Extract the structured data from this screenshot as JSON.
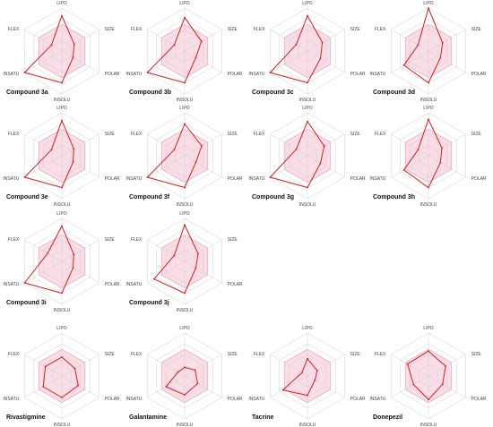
{
  "figure": {
    "axes": [
      "LIPO",
      "SIZE",
      "POLAR",
      "INSOLU",
      "INSATU",
      "FLEX"
    ],
    "colors": {
      "zone_fill": "#f7c6d6",
      "zone_stroke": "#e89ab5",
      "grid": "#d0d0d0",
      "trace": "#d42020",
      "text": "#444444"
    }
  },
  "chart_data": [
    {
      "type": "radar",
      "title": "Compound 3a",
      "axes": [
        "LIPO",
        "SIZE",
        "POLAR",
        "INSOLU",
        "INSATU",
        "FLEX"
      ],
      "values": [
        0.82,
        0.33,
        0.3,
        0.74,
        1.0,
        0.28
      ],
      "rmax": 1.0,
      "optimal_zone": 0.62
    },
    {
      "type": "radar",
      "title": "Compound 3b",
      "axes": [
        "LIPO",
        "SIZE",
        "POLAR",
        "INSOLU",
        "INSATU",
        "FLEX"
      ],
      "values": [
        0.78,
        0.45,
        0.3,
        0.74,
        1.0,
        0.28
      ],
      "rmax": 1.0,
      "optimal_zone": 0.62
    },
    {
      "type": "radar",
      "title": "Compound 3c",
      "axes": [
        "LIPO",
        "SIZE",
        "POLAR",
        "INSOLU",
        "INSATU",
        "FLEX"
      ],
      "values": [
        0.82,
        0.4,
        0.35,
        0.74,
        1.0,
        0.3
      ],
      "rmax": 1.0,
      "optimal_zone": 0.62
    },
    {
      "type": "radar",
      "title": "Compound 3d",
      "axes": [
        "LIPO",
        "SIZE",
        "POLAR",
        "INSOLU",
        "INSATU",
        "FLEX"
      ],
      "values": [
        1.0,
        0.38,
        0.32,
        0.74,
        0.66,
        0.28
      ],
      "rmax": 1.0,
      "optimal_zone": 0.62
    },
    {
      "type": "radar",
      "title": "Compound 3e",
      "axes": [
        "LIPO",
        "SIZE",
        "POLAR",
        "INSOLU",
        "INSATU",
        "FLEX"
      ],
      "values": [
        0.82,
        0.32,
        0.3,
        0.74,
        1.0,
        0.28
      ],
      "rmax": 1.0,
      "optimal_zone": 0.62
    },
    {
      "type": "radar",
      "title": "Compound 3f",
      "axes": [
        "LIPO",
        "SIZE",
        "POLAR",
        "INSOLU",
        "INSATU",
        "FLEX"
      ],
      "values": [
        0.74,
        0.46,
        0.3,
        0.74,
        1.0,
        0.28
      ],
      "rmax": 1.0,
      "optimal_zone": 0.62
    },
    {
      "type": "radar",
      "title": "Compound 3g",
      "axes": [
        "LIPO",
        "SIZE",
        "POLAR",
        "INSOLU",
        "INSATU",
        "FLEX"
      ],
      "values": [
        0.8,
        0.45,
        0.35,
        0.74,
        1.0,
        0.3
      ],
      "rmax": 1.0,
      "optimal_zone": 0.62
    },
    {
      "type": "radar",
      "title": "Compound 3h",
      "axes": [
        "LIPO",
        "SIZE",
        "POLAR",
        "INSOLU",
        "INSATU",
        "FLEX"
      ],
      "values": [
        0.85,
        0.36,
        0.32,
        0.74,
        0.66,
        0.28
      ],
      "rmax": 1.0,
      "optimal_zone": 0.62
    },
    {
      "type": "radar",
      "title": "Compound 3i",
      "axes": [
        "LIPO",
        "SIZE",
        "POLAR",
        "INSOLU",
        "INSATU",
        "FLEX"
      ],
      "values": [
        0.82,
        0.32,
        0.3,
        0.74,
        1.0,
        0.38
      ],
      "rmax": 1.0,
      "optimal_zone": 0.62
    },
    {
      "type": "radar",
      "title": "Compound 3j",
      "axes": [
        "LIPO",
        "SIZE",
        "POLAR",
        "INSOLU",
        "INSATU",
        "FLEX"
      ],
      "values": [
        0.85,
        0.36,
        0.3,
        0.74,
        0.82,
        0.28
      ],
      "rmax": 1.0,
      "optimal_zone": 0.62
    },
    {
      "type": "radar",
      "title": "Rivastigmine",
      "axes": [
        "LIPO",
        "SIZE",
        "POLAR",
        "INSOLU",
        "INSATU",
        "FLEX"
      ],
      "values": [
        0.44,
        0.35,
        0.44,
        0.5,
        0.5,
        0.44
      ],
      "rmax": 1.0,
      "optimal_zone": 0.62
    },
    {
      "type": "radar",
      "title": "Galantamine",
      "axes": [
        "LIPO",
        "SIZE",
        "POLAR",
        "INSOLU",
        "INSATU",
        "FLEX"
      ],
      "values": [
        0.2,
        0.28,
        0.35,
        0.44,
        0.5,
        0.18
      ],
      "rmax": 1.0,
      "optimal_zone": 0.62
    },
    {
      "type": "radar",
      "title": "Tacrine",
      "axes": [
        "LIPO",
        "SIZE",
        "POLAR",
        "INSOLU",
        "INSATU",
        "FLEX"
      ],
      "values": [
        0.4,
        0.26,
        0.2,
        0.45,
        0.66,
        0.15
      ],
      "rmax": 1.0,
      "optimal_zone": 0.62
    },
    {
      "type": "radar",
      "title": "Donepezil",
      "axes": [
        "LIPO",
        "SIZE",
        "POLAR",
        "INSOLU",
        "INSATU",
        "FLEX"
      ],
      "values": [
        0.58,
        0.46,
        0.38,
        0.55,
        0.4,
        0.56
      ],
      "rmax": 1.0,
      "optimal_zone": 0.62
    }
  ]
}
